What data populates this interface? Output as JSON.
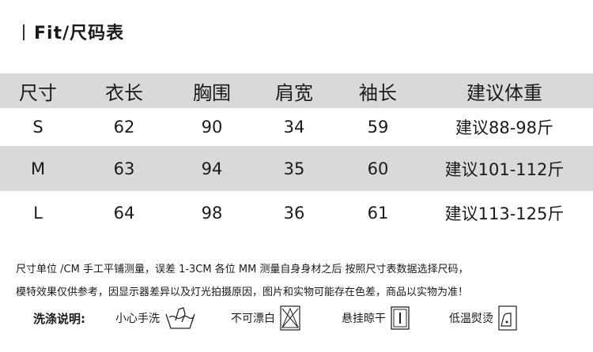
{
  "title": "Fit/尺码表",
  "table": {
    "headers": [
      "尺寸",
      "衣长",
      "胸围",
      "肩宽",
      "袖长",
      "建议体重"
    ],
    "rows": [
      [
        "S",
        "62",
        "90",
        "34",
        "59",
        "建议88-98斤"
      ],
      [
        "M",
        "63",
        "94",
        "35",
        "60",
        "建议101-112斤"
      ],
      [
        "L",
        "64",
        "98",
        "36",
        "61",
        "建议113-125斤"
      ]
    ]
  },
  "notes": [
    "尺寸单位 /CM 手工平铺测量，误差 1-3CM  各位 MM 测量自身身材之后 按照尺寸表数据选择尺码，",
    "模特效果仅供参考，因显示器差异以及灯光拍摄原因，图片和实物可能存在色差，商品以实物为准！"
  ],
  "care": {
    "label": "洗涤说明:",
    "items": [
      {
        "label": "小心手洗",
        "icon": "hand-wash-icon"
      },
      {
        "label": "不可漂白",
        "icon": "no-bleach-icon"
      },
      {
        "label": "悬挂晾干",
        "icon": "hang-dry-icon"
      },
      {
        "label": "低温熨烫",
        "icon": "low-iron-icon"
      }
    ]
  },
  "colors": {
    "band": "#d9d9d9",
    "text": "#1a1a1a"
  }
}
